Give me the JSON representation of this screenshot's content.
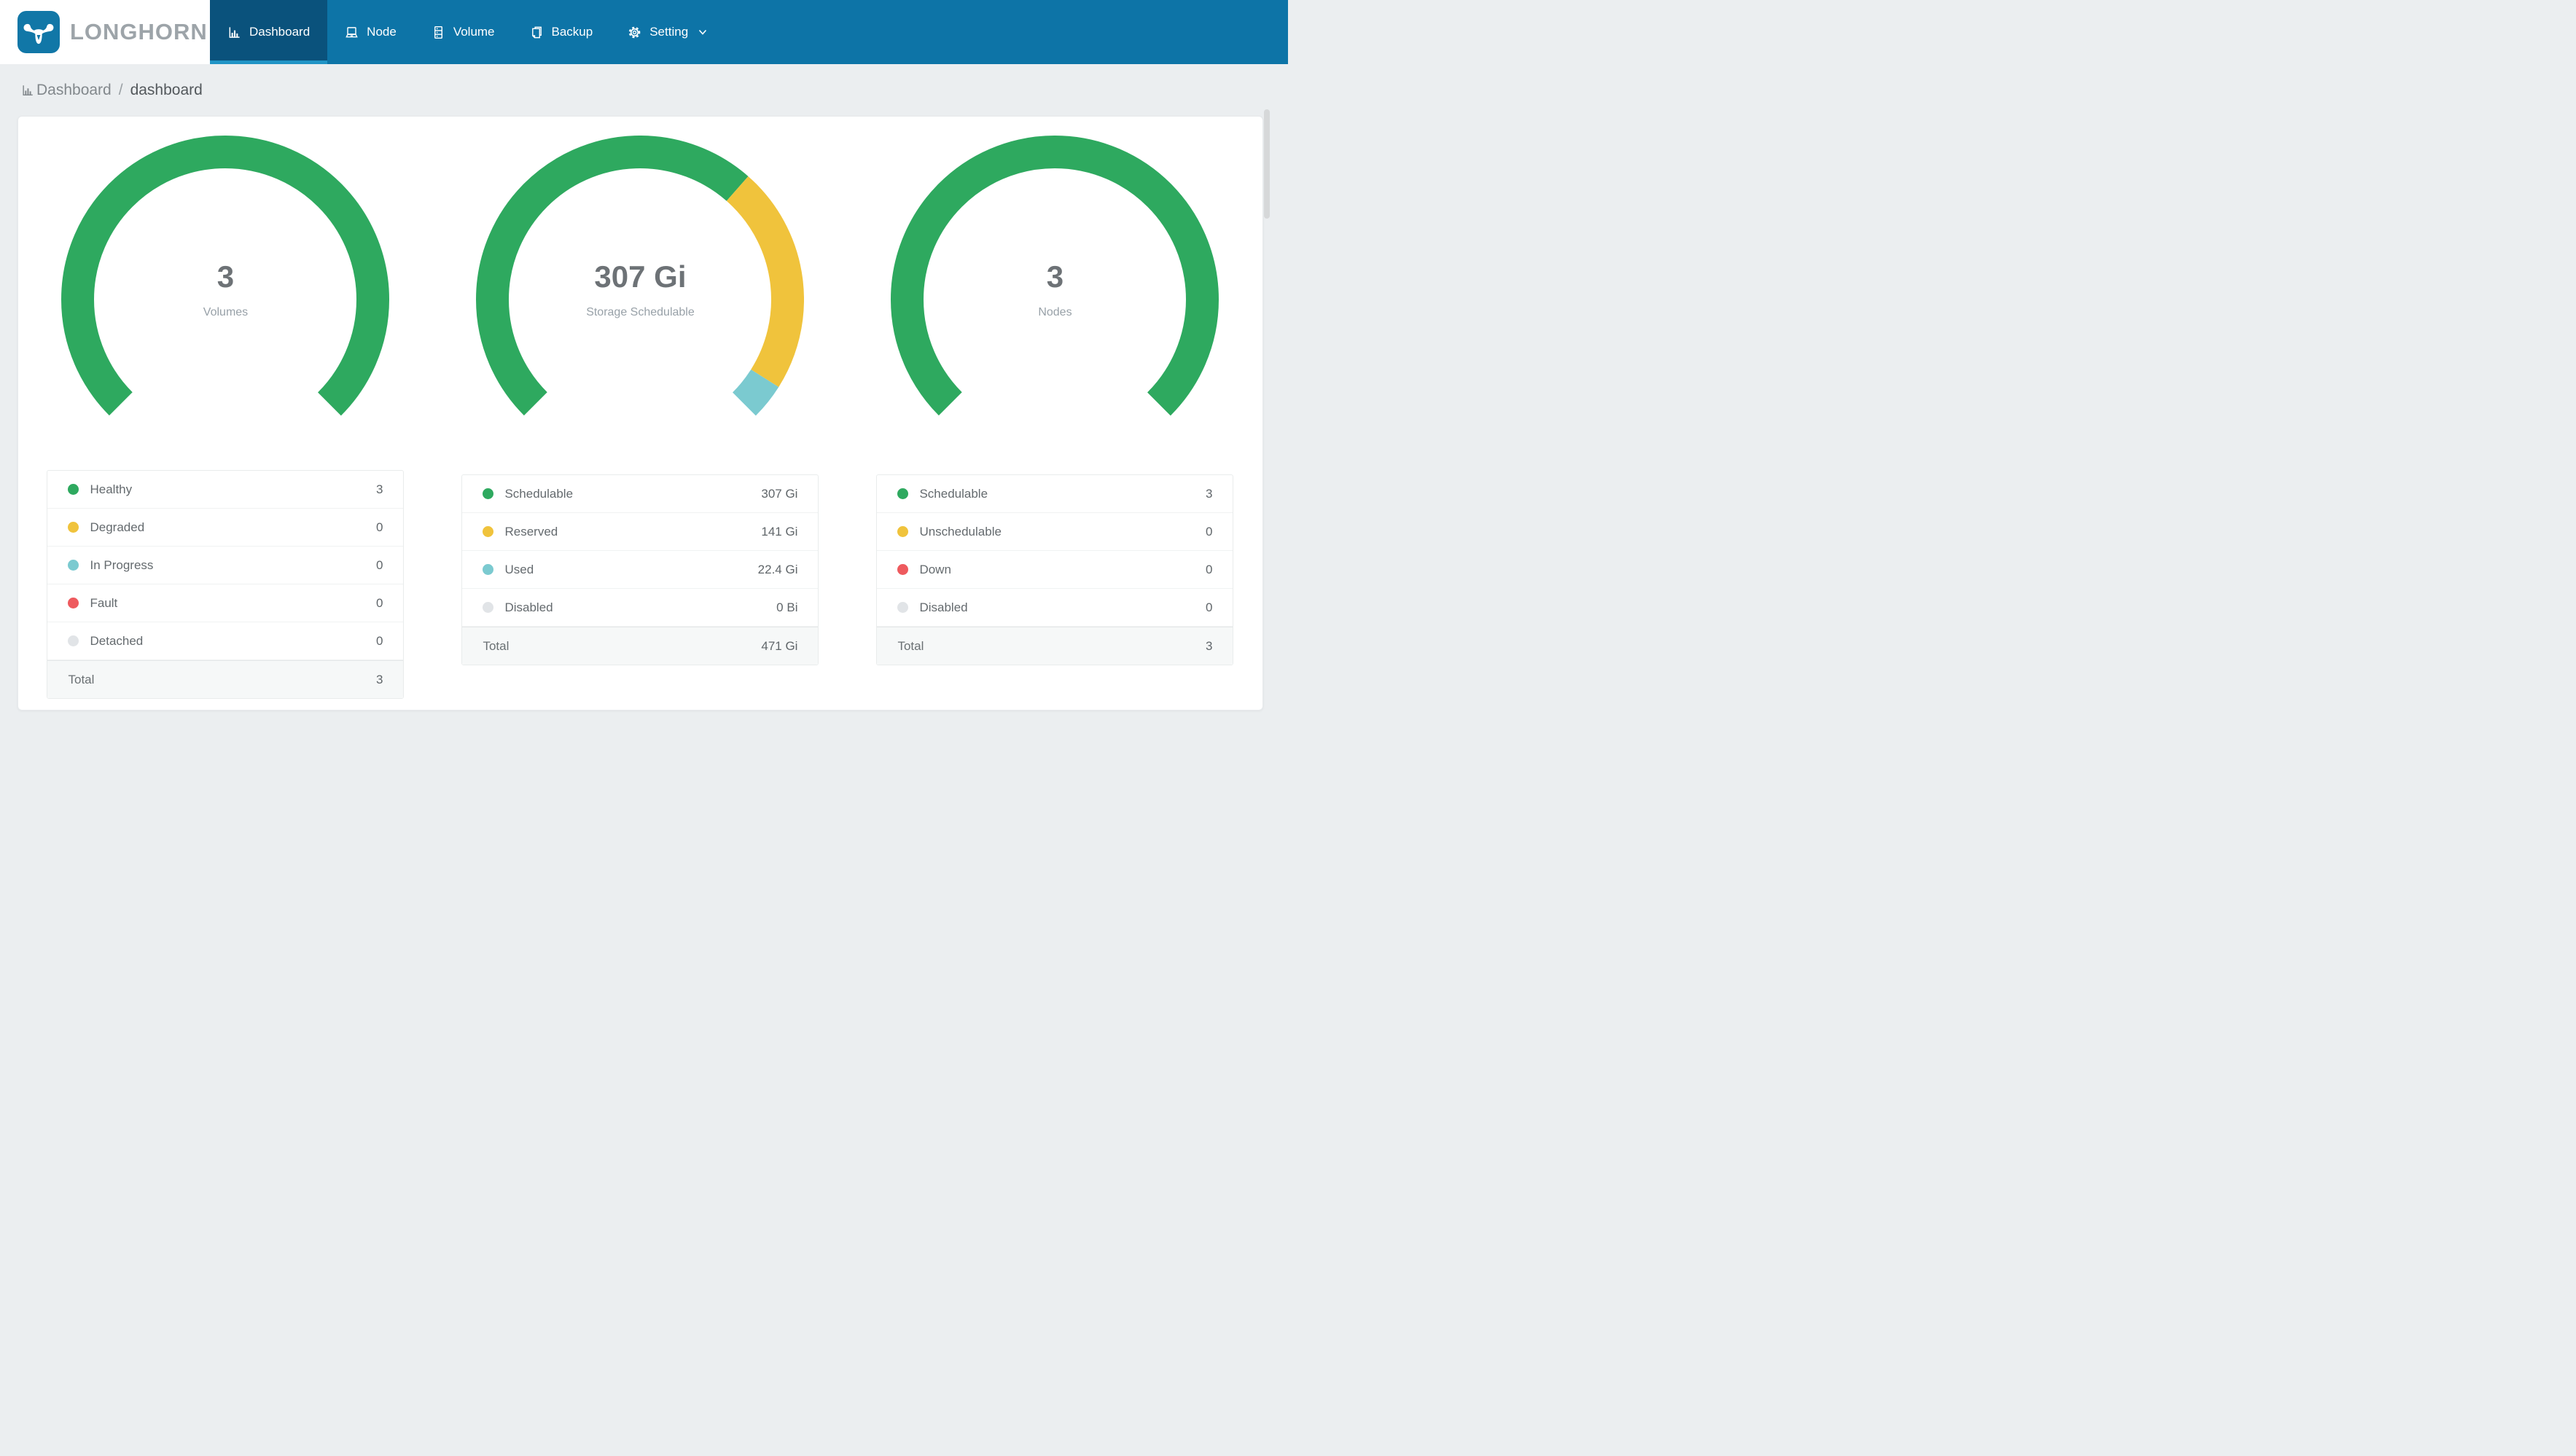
{
  "nav": {
    "brand": "LONGHORN",
    "items": [
      {
        "label": "Dashboard",
        "icon": "dashboard",
        "active": true,
        "has_dropdown": false
      },
      {
        "label": "Node",
        "icon": "node",
        "active": false,
        "has_dropdown": false
      },
      {
        "label": "Volume",
        "icon": "volume",
        "active": false,
        "has_dropdown": false
      },
      {
        "label": "Backup",
        "icon": "backup",
        "active": false,
        "has_dropdown": false
      },
      {
        "label": "Setting",
        "icon": "setting",
        "active": false,
        "has_dropdown": true
      }
    ]
  },
  "breadcrumb": {
    "section": "Dashboard",
    "separator": "/",
    "page": "dashboard"
  },
  "theme": {
    "navbar": "#0d74a7",
    "navbar_active": "#0a527c",
    "navbar_underline": "#2094c5",
    "logo_blue": "#1177a7",
    "green": "#2ea95f",
    "yellow": "#f0c33c",
    "teal": "#7bcad0",
    "red": "#ee5a5e",
    "gray": "#e1e4e7"
  },
  "chart_data": [
    {
      "type": "gauge",
      "arc_span_deg": 270,
      "center_value": "3",
      "center_label": "Volumes",
      "segments": [
        {
          "label": "Healthy",
          "value": 3,
          "display": "3",
          "color": "green"
        },
        {
          "label": "Degraded",
          "value": 0,
          "display": "0",
          "color": "yellow"
        },
        {
          "label": "In Progress",
          "value": 0,
          "display": "0",
          "color": "teal"
        },
        {
          "label": "Fault",
          "value": 0,
          "display": "0",
          "color": "red"
        },
        {
          "label": "Detached",
          "value": 0,
          "display": "0",
          "color": "gray"
        }
      ],
      "total": {
        "label": "Total",
        "display": "3"
      }
    },
    {
      "type": "gauge",
      "arc_span_deg": 270,
      "center_value": "307 Gi",
      "center_label": "Storage Schedulable",
      "segments": [
        {
          "label": "Schedulable",
          "value": 307,
          "display": "307 Gi",
          "color": "green"
        },
        {
          "label": "Reserved",
          "value": 141,
          "display": "141 Gi",
          "color": "yellow"
        },
        {
          "label": "Used",
          "value": 22.4,
          "display": "22.4 Gi",
          "color": "teal"
        },
        {
          "label": "Disabled",
          "value": 0,
          "display": "0 Bi",
          "color": "gray"
        }
      ],
      "total": {
        "label": "Total",
        "display": "471 Gi"
      }
    },
    {
      "type": "gauge",
      "arc_span_deg": 270,
      "center_value": "3",
      "center_label": "Nodes",
      "segments": [
        {
          "label": "Schedulable",
          "value": 3,
          "display": "3",
          "color": "green"
        },
        {
          "label": "Unschedulable",
          "value": 0,
          "display": "0",
          "color": "yellow"
        },
        {
          "label": "Down",
          "value": 0,
          "display": "0",
          "color": "red"
        },
        {
          "label": "Disabled",
          "value": 0,
          "display": "0",
          "color": "gray"
        }
      ],
      "total": {
        "label": "Total",
        "display": "3"
      }
    }
  ]
}
